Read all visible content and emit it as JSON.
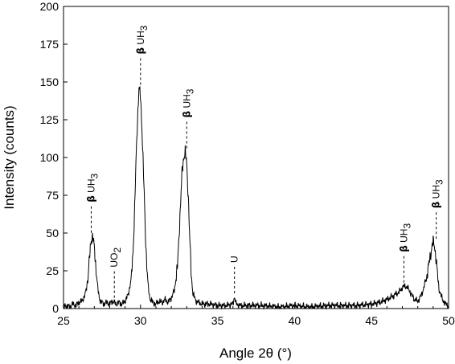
{
  "chart_data": {
    "type": "line",
    "xlabel": "Angle 2θ (°)",
    "ylabel": "Intensity (counts)",
    "xlim": [
      25,
      50
    ],
    "ylim": [
      0,
      200
    ],
    "xticks": [
      25,
      30,
      35,
      40,
      45,
      50
    ],
    "yticks": [
      0,
      25,
      50,
      75,
      100,
      125,
      150,
      175,
      200
    ],
    "grid": false,
    "legend": "none",
    "line_color": "#000000",
    "series": [
      {
        "x": [
          25.0,
          25.2,
          25.4,
          25.6,
          25.8,
          26.0,
          26.2,
          26.4,
          26.5,
          26.6,
          26.7,
          26.8,
          26.9,
          27.0,
          27.1,
          27.2,
          27.3,
          27.4,
          27.6,
          27.8,
          28.0,
          28.2,
          28.4,
          28.6,
          28.8,
          29.0,
          29.2,
          29.4,
          29.5,
          29.6,
          29.7,
          29.8,
          29.9,
          30.0,
          30.1,
          30.2,
          30.3,
          30.4,
          30.5,
          30.6,
          30.8,
          31.0,
          31.2,
          31.4,
          31.6,
          31.8,
          32.0,
          32.2,
          32.4,
          32.5,
          32.6,
          32.7,
          32.8,
          32.9,
          33.0,
          33.1,
          33.2,
          33.3,
          33.4,
          33.6,
          33.8,
          34.0,
          34.5,
          35.0,
          35.5,
          36.0,
          36.1,
          36.2,
          36.5,
          37.0,
          38.0,
          39.0,
          40.0,
          41.0,
          42.0,
          43.0,
          44.0,
          45.0,
          45.5,
          46.0,
          46.5,
          46.8,
          47.0,
          47.2,
          47.4,
          47.6,
          47.8,
          48.0,
          48.2,
          48.4,
          48.6,
          48.8,
          48.9,
          49.0,
          49.1,
          49.2,
          49.3,
          49.4,
          49.6,
          49.8,
          50.0
        ],
        "values": [
          1,
          2,
          1,
          3,
          2,
          4,
          5,
          9,
          14,
          22,
          35,
          46,
          48,
          40,
          28,
          16,
          8,
          5,
          3,
          4,
          3,
          5,
          3,
          4,
          3,
          5,
          9,
          20,
          35,
          60,
          95,
          125,
          146,
          140,
          118,
          88,
          55,
          30,
          14,
          7,
          4,
          3,
          5,
          4,
          6,
          4,
          7,
          12,
          28,
          48,
          70,
          90,
          100,
          104,
          95,
          75,
          45,
          22,
          10,
          5,
          4,
          3,
          3,
          2,
          2,
          3,
          8,
          3,
          2,
          2,
          2,
          1,
          2,
          1,
          2,
          2,
          2,
          3,
          4,
          6,
          9,
          11,
          14,
          15,
          13,
          9,
          6,
          5,
          8,
          14,
          22,
          34,
          40,
          44,
          41,
          32,
          20,
          12,
          6,
          3,
          2
        ]
      }
    ],
    "annotations": [
      {
        "x": 26.8,
        "y": 48,
        "label_greek": "β",
        "label": "UH",
        "subscript": "3"
      },
      {
        "x": 28.3,
        "y": 5,
        "label_greek": "",
        "label": "UO",
        "subscript": "2"
      },
      {
        "x": 30.0,
        "y": 146,
        "label_greek": "β",
        "label": "UH",
        "subscript": "3"
      },
      {
        "x": 33.0,
        "y": 104,
        "label_greek": "β",
        "label": "UH",
        "subscript": "3"
      },
      {
        "x": 36.1,
        "y": 8,
        "label_greek": "",
        "label": "U",
        "subscript": ""
      },
      {
        "x": 47.1,
        "y": 15,
        "label_greek": "β",
        "label": "UH",
        "subscript": "3"
      },
      {
        "x": 49.2,
        "y": 44,
        "label_greek": "β",
        "label": "UH",
        "subscript": "3"
      }
    ]
  }
}
